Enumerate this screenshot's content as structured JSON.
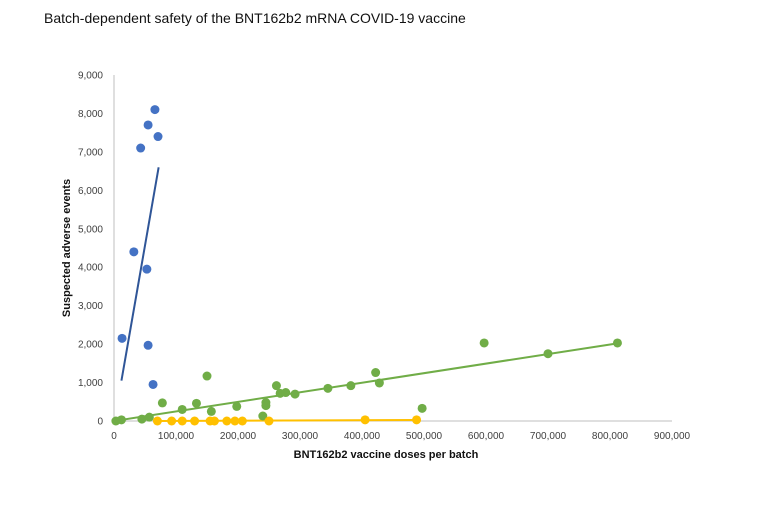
{
  "chart_data": {
    "type": "scatter",
    "title": "Batch-dependent safety of the BNT162b2 mRNA COVID-19 vaccine",
    "xlabel": "BNT162b2 vaccine doses per batch",
    "ylabel": "Suspected adverse events",
    "xlim": [
      0,
      900000
    ],
    "ylim": [
      0,
      9000
    ],
    "x_ticks": [
      "0",
      "100,000",
      "200,000",
      "300,000",
      "400,000",
      "500,000",
      "600,000",
      "700,000",
      "800,000",
      "900,000"
    ],
    "y_ticks": [
      "0",
      "1,000",
      "2,000",
      "3,000",
      "4,000",
      "5,000",
      "6,000",
      "7,000",
      "8,000",
      "9,000"
    ],
    "grid": false,
    "legend": "none",
    "series": [
      {
        "color": "#4472C4",
        "points": [
          {
            "x": 13000,
            "y": 2150
          },
          {
            "x": 32000,
            "y": 4400
          },
          {
            "x": 43000,
            "y": 7100
          },
          {
            "x": 53000,
            "y": 3950
          },
          {
            "x": 55000,
            "y": 7700
          },
          {
            "x": 55000,
            "y": 1970
          },
          {
            "x": 63000,
            "y": 950
          },
          {
            "x": 66000,
            "y": 8100
          },
          {
            "x": 71000,
            "y": 7400
          }
        ],
        "trendline": {
          "x": [
            12000,
            72000
          ],
          "y": [
            1050,
            6600
          ],
          "color": "#2F5597"
        }
      },
      {
        "color": "#70AD47",
        "points": [
          {
            "x": 3000,
            "y": 0
          },
          {
            "x": 12000,
            "y": 30
          },
          {
            "x": 45000,
            "y": 50
          },
          {
            "x": 57000,
            "y": 100
          },
          {
            "x": 78000,
            "y": 470
          },
          {
            "x": 110000,
            "y": 300
          },
          {
            "x": 133000,
            "y": 460
          },
          {
            "x": 150000,
            "y": 1170
          },
          {
            "x": 157000,
            "y": 250
          },
          {
            "x": 198000,
            "y": 380
          },
          {
            "x": 240000,
            "y": 130
          },
          {
            "x": 245000,
            "y": 400
          },
          {
            "x": 245000,
            "y": 480
          },
          {
            "x": 262000,
            "y": 920
          },
          {
            "x": 268000,
            "y": 720
          },
          {
            "x": 277000,
            "y": 740
          },
          {
            "x": 292000,
            "y": 700
          },
          {
            "x": 345000,
            "y": 850
          },
          {
            "x": 382000,
            "y": 920
          },
          {
            "x": 422000,
            "y": 1260
          },
          {
            "x": 428000,
            "y": 990
          },
          {
            "x": 497000,
            "y": 330
          },
          {
            "x": 597000,
            "y": 2030
          },
          {
            "x": 700000,
            "y": 1750
          },
          {
            "x": 812000,
            "y": 2030
          }
        ],
        "trendline": {
          "x": [
            0,
            812000
          ],
          "y": [
            0,
            2020
          ],
          "color": "#70AD47"
        }
      },
      {
        "color": "#FFC000",
        "points": [
          {
            "x": 70000,
            "y": 0
          },
          {
            "x": 93000,
            "y": 0
          },
          {
            "x": 110000,
            "y": 0
          },
          {
            "x": 130000,
            "y": 0
          },
          {
            "x": 155000,
            "y": 0
          },
          {
            "x": 162000,
            "y": 0
          },
          {
            "x": 182000,
            "y": 0
          },
          {
            "x": 195000,
            "y": 0
          },
          {
            "x": 207000,
            "y": 0
          },
          {
            "x": 250000,
            "y": 0
          },
          {
            "x": 405000,
            "y": 30
          },
          {
            "x": 488000,
            "y": 30
          }
        ],
        "trendline": {
          "x": [
            70000,
            488000
          ],
          "y": [
            0,
            25
          ],
          "color": "#FFC000"
        }
      }
    ]
  }
}
